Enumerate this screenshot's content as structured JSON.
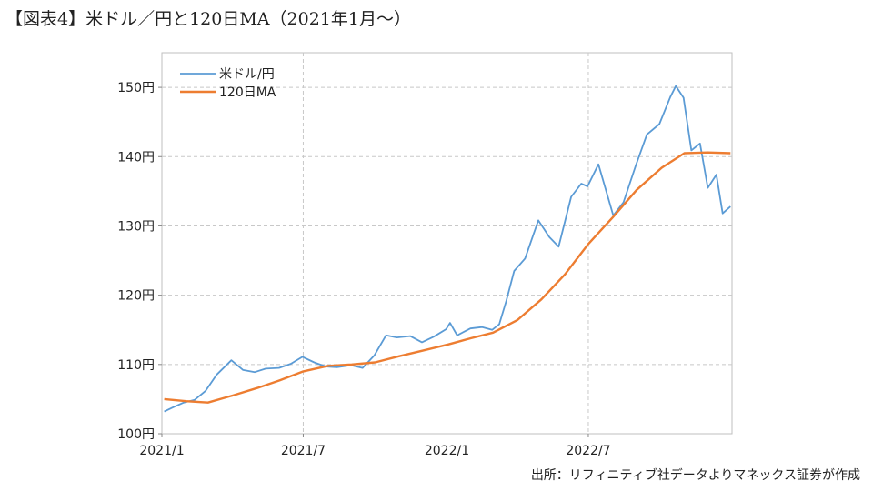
{
  "title": "【図表4】米ドル／円と120日MA（2021年1月～）",
  "source": "出所：リフィニティブ社データよりマネックス証券が作成",
  "chart_data": {
    "type": "line",
    "grid": true,
    "legend_position": "top-left",
    "ylim": [
      100,
      155
    ],
    "y_ticks": [
      100,
      110,
      120,
      130,
      140,
      150
    ],
    "y_tick_labels": [
      "100円",
      "110円",
      "120円",
      "130円",
      "140円",
      "150円"
    ],
    "x_ticks": [
      "2021/1",
      "2021/7",
      "2022/1",
      "2022/7"
    ],
    "series": [
      {
        "name": "米ドル/円",
        "color": "#5b9bd5",
        "points": [
          [
            "2021-01-04",
            103.2
          ],
          [
            "2021-01-15",
            103.8
          ],
          [
            "2021-01-29",
            104.5
          ],
          [
            "2021-02-12",
            104.9
          ],
          [
            "2021-02-26",
            106.2
          ],
          [
            "2021-03-12",
            108.5
          ],
          [
            "2021-03-31",
            110.6
          ],
          [
            "2021-04-15",
            109.2
          ],
          [
            "2021-04-30",
            108.9
          ],
          [
            "2021-05-14",
            109.4
          ],
          [
            "2021-05-31",
            109.5
          ],
          [
            "2021-06-15",
            110.1
          ],
          [
            "2021-06-30",
            111.1
          ],
          [
            "2021-07-15",
            110.3
          ],
          [
            "2021-07-30",
            109.7
          ],
          [
            "2021-08-13",
            109.6
          ],
          [
            "2021-08-31",
            109.9
          ],
          [
            "2021-09-15",
            109.5
          ],
          [
            "2021-09-30",
            111.3
          ],
          [
            "2021-10-15",
            114.2
          ],
          [
            "2021-10-29",
            113.9
          ],
          [
            "2021-11-15",
            114.1
          ],
          [
            "2021-11-30",
            113.2
          ],
          [
            "2021-12-15",
            114.0
          ],
          [
            "2021-12-31",
            115.1
          ],
          [
            "2022-01-05",
            116.0
          ],
          [
            "2022-01-14",
            114.2
          ],
          [
            "2022-01-31",
            115.2
          ],
          [
            "2022-02-15",
            115.4
          ],
          [
            "2022-02-28",
            115.0
          ],
          [
            "2022-03-09",
            115.8
          ],
          [
            "2022-03-18",
            119.2
          ],
          [
            "2022-03-28",
            123.5
          ],
          [
            "2022-04-11",
            125.3
          ],
          [
            "2022-04-28",
            130.8
          ],
          [
            "2022-05-12",
            128.4
          ],
          [
            "2022-05-24",
            127.0
          ],
          [
            "2022-06-09",
            134.2
          ],
          [
            "2022-06-22",
            136.1
          ],
          [
            "2022-06-30",
            135.7
          ],
          [
            "2022-07-14",
            138.9
          ],
          [
            "2022-08-02",
            131.5
          ],
          [
            "2022-08-15",
            133.4
          ],
          [
            "2022-08-31",
            138.8
          ],
          [
            "2022-09-14",
            143.2
          ],
          [
            "2022-09-30",
            144.7
          ],
          [
            "2022-10-14",
            148.6
          ],
          [
            "2022-10-21",
            150.2
          ],
          [
            "2022-10-31",
            148.5
          ],
          [
            "2022-11-10",
            140.9
          ],
          [
            "2022-11-21",
            141.9
          ],
          [
            "2022-12-01",
            135.5
          ],
          [
            "2022-12-12",
            137.4
          ],
          [
            "2022-12-20",
            131.8
          ],
          [
            "2022-12-30",
            132.8
          ]
        ]
      },
      {
        "name": "120日MA",
        "color": "#ed7d31",
        "points": [
          [
            "2021-01-04",
            105.0
          ],
          [
            "2021-02-01",
            104.7
          ],
          [
            "2021-03-01",
            104.5
          ],
          [
            "2021-04-01",
            105.5
          ],
          [
            "2021-05-03",
            106.6
          ],
          [
            "2021-06-01",
            107.7
          ],
          [
            "2021-07-01",
            109.0
          ],
          [
            "2021-08-02",
            109.8
          ],
          [
            "2021-09-01",
            110.0
          ],
          [
            "2021-10-01",
            110.3
          ],
          [
            "2021-11-01",
            111.2
          ],
          [
            "2021-12-01",
            112.0
          ],
          [
            "2022-01-03",
            112.9
          ],
          [
            "2022-02-01",
            113.8
          ],
          [
            "2022-03-01",
            114.6
          ],
          [
            "2022-04-01",
            116.4
          ],
          [
            "2022-05-02",
            119.4
          ],
          [
            "2022-06-01",
            123.0
          ],
          [
            "2022-07-01",
            127.4
          ],
          [
            "2022-08-01",
            131.2
          ],
          [
            "2022-09-01",
            135.2
          ],
          [
            "2022-10-03",
            138.4
          ],
          [
            "2022-11-01",
            140.5
          ],
          [
            "2022-12-01",
            140.6
          ],
          [
            "2022-12-30",
            140.5
          ]
        ]
      }
    ]
  }
}
